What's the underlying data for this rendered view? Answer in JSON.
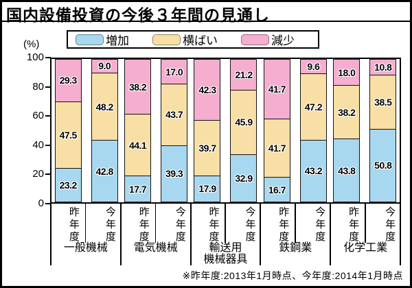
{
  "title": "国内設備投資の今後３年間の見通し",
  "y_axis": {
    "unit_label": "(%)",
    "ticks": [
      0,
      20,
      40,
      60,
      80,
      100
    ]
  },
  "legend": {
    "items": [
      {
        "key": "increase",
        "label": "増加"
      },
      {
        "key": "flat",
        "label": "横ばい"
      },
      {
        "key": "decrease",
        "label": "減少"
      }
    ]
  },
  "footnote": "※昨年度:2013年1月時点、今年度:2014年1月時点",
  "colors": {
    "increase": "#A8D8F0",
    "flat": "#F8DFA5",
    "decrease": "#F5AED0",
    "outline": "#111111"
  },
  "chart_data": {
    "type": "bar",
    "stacked": true,
    "unit": "%",
    "ylim": [
      0,
      100
    ],
    "yticks": [
      0,
      20,
      40,
      60,
      80,
      100
    ],
    "bar_labels": [
      "昨年度",
      "今年度"
    ],
    "series_order": [
      "increase",
      "flat",
      "decrease"
    ],
    "series_names": {
      "increase": "増加",
      "flat": "横ばい",
      "decrease": "減少"
    },
    "legend_position": "top",
    "grid": false,
    "groups": [
      {
        "category": "一般機械",
        "category_lines": [
          "一般機械"
        ],
        "bars": [
          {
            "label": "昨年度",
            "increase": 23.2,
            "flat": 47.5,
            "decrease": 29.3
          },
          {
            "label": "今年度",
            "increase": 42.8,
            "flat": 48.2,
            "decrease": 9.0
          }
        ]
      },
      {
        "category": "電気機械",
        "category_lines": [
          "電気機械"
        ],
        "bars": [
          {
            "label": "昨年度",
            "increase": 17.7,
            "flat": 44.1,
            "decrease": 38.2
          },
          {
            "label": "今年度",
            "increase": 39.3,
            "flat": 43.7,
            "decrease": 17.0
          }
        ]
      },
      {
        "category": "輸送用機械器具",
        "category_lines": [
          "輸送用",
          "機械器具"
        ],
        "bars": [
          {
            "label": "昨年度",
            "increase": 17.9,
            "flat": 39.7,
            "decrease": 42.3
          },
          {
            "label": "今年度",
            "increase": 32.9,
            "flat": 45.9,
            "decrease": 21.2
          }
        ]
      },
      {
        "category": "鉄鋼業",
        "category_lines": [
          "鉄鋼業"
        ],
        "bars": [
          {
            "label": "昨年度",
            "increase": 16.7,
            "flat": 41.7,
            "decrease": 41.7
          },
          {
            "label": "今年度",
            "increase": 43.2,
            "flat": 47.2,
            "decrease": 9.6
          }
        ]
      },
      {
        "category": "化学工業",
        "category_lines": [
          "化学工業"
        ],
        "bars": [
          {
            "label": "昨年度",
            "increase": 43.8,
            "flat": 38.2,
            "decrease": 18.0
          },
          {
            "label": "今年度",
            "increase": 50.8,
            "flat": 38.5,
            "decrease": 10.8
          }
        ]
      }
    ]
  }
}
